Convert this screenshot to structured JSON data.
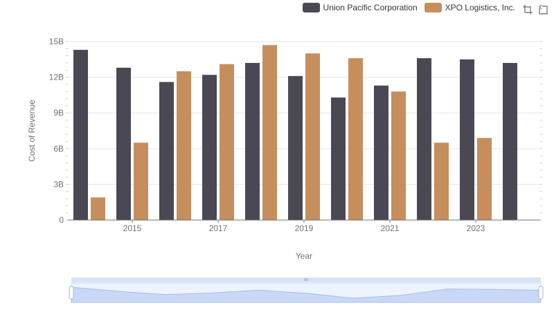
{
  "legend": {
    "items": [
      {
        "label": "Union Pacific Corporation",
        "color": "#4a4953"
      },
      {
        "label": "XPO Logistics, Inc.",
        "color": "#c68e5c"
      }
    ]
  },
  "toolbox": {
    "icons": [
      "zoom-icon",
      "restore-icon"
    ]
  },
  "chart_data": {
    "type": "bar",
    "x": [
      2014,
      2015,
      2016,
      2017,
      2018,
      2019,
      2020,
      2021,
      2022,
      2023,
      2024
    ],
    "x_tick_labels": [
      "2015",
      "2017",
      "2019",
      "2021",
      "2023"
    ],
    "series": [
      {
        "name": "Union Pacific Corporation",
        "color": "#4a4953",
        "values": [
          14.3,
          12.8,
          11.6,
          12.2,
          13.2,
          12.1,
          10.3,
          11.3,
          13.6,
          13.5,
          13.2
        ]
      },
      {
        "name": "XPO Logistics, Inc.",
        "color": "#c68e5c",
        "values": [
          1.9,
          6.5,
          12.5,
          13.1,
          14.7,
          14.0,
          13.6,
          10.8,
          6.5,
          6.9,
          null
        ]
      }
    ],
    "ylim": [
      0,
      15
    ],
    "y_ticks": [
      0,
      3,
      6,
      9,
      12,
      15
    ],
    "y_tick_labels": [
      "0",
      "3B",
      "6B",
      "9B",
      "12B",
      "15B"
    ],
    "xlabel": "Year",
    "ylabel": "Cost of Revenue",
    "grid": true,
    "legend_position": "top-right",
    "data_zoom": {
      "range": [
        0,
        100
      ]
    }
  }
}
